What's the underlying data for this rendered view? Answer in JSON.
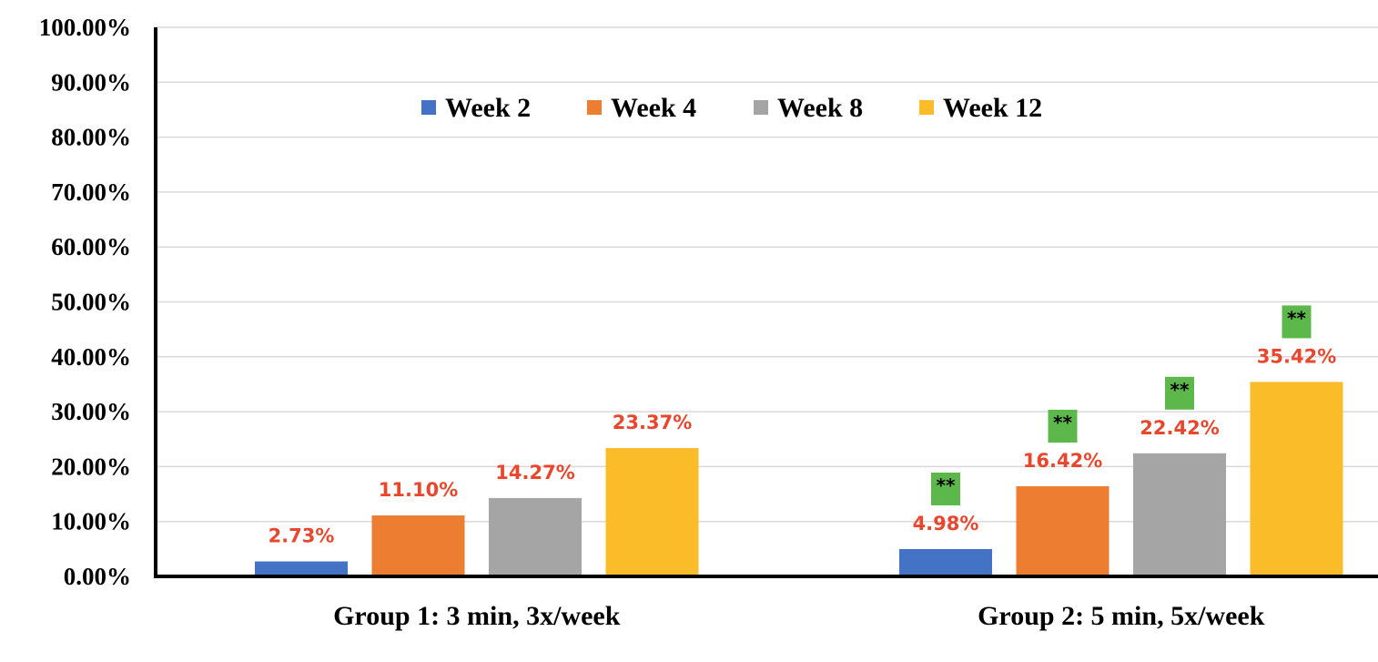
{
  "chart_data": {
    "type": "bar",
    "title": "",
    "xlabel": "",
    "ylabel": "",
    "ylim": [
      0,
      1
    ],
    "yticks": [
      "0.00%",
      "10.00%",
      "20.00%",
      "30.00%",
      "40.00%",
      "50.00%",
      "60.00%",
      "70.00%",
      "80.00%",
      "90.00%",
      "100.00%"
    ],
    "grid": true,
    "legend_position": "top-center",
    "categories": [
      "Group 1: 3 min, 3x/week",
      "Group 2: 5 min, 5x/week"
    ],
    "series": [
      {
        "name": "Week 2",
        "color": "#4472c4",
        "values": [
          0.0273,
          0.0498
        ],
        "labels": [
          "2.73%",
          "4.98%"
        ],
        "significance": [
          "",
          "**"
        ]
      },
      {
        "name": "Week 4",
        "color": "#ed7d31",
        "values": [
          0.111,
          0.1642
        ],
        "labels": [
          "11.10%",
          "16.42%"
        ],
        "significance": [
          "",
          "**"
        ]
      },
      {
        "name": "Week 8",
        "color": "#a5a5a5",
        "values": [
          0.1427,
          0.2242
        ],
        "labels": [
          "14.27%",
          "22.42%"
        ],
        "significance": [
          "",
          "**"
        ]
      },
      {
        "name": "Week 12",
        "color": "#fbbc2a",
        "values": [
          0.2337,
          0.3542
        ],
        "labels": [
          "23.37%",
          "35.42%"
        ],
        "significance": [
          "",
          "**"
        ]
      }
    ],
    "label_color": "#e8472e",
    "significance_box_color": "#5cb84a"
  }
}
